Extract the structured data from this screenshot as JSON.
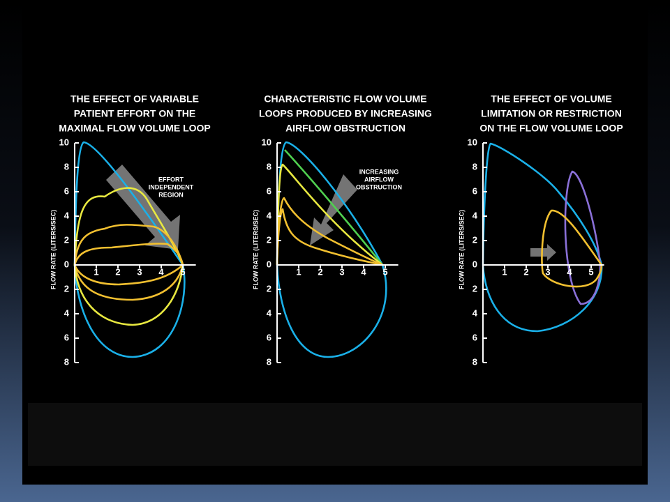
{
  "panels": [
    {
      "title": [
        "THE EFFECT OF VARIABLE",
        "PATIENT EFFORT ON THE",
        "MAXIMAL FLOW VOLUME LOOP"
      ],
      "y_label": "FLOW RATE (LITERS/SEC)",
      "y_ticks_upper": [
        10,
        8,
        6,
        4,
        2,
        0
      ],
      "y_ticks_lower": [
        2,
        4,
        6,
        8
      ],
      "x_ticks": [
        1,
        2,
        3,
        4,
        5
      ],
      "annotation": [
        "EFFORT",
        "INDEPENDENT",
        "REGION"
      ]
    },
    {
      "title": [
        "CHARACTERISTIC FLOW VOLUME",
        "LOOPS PRODUCED BY INCREASING",
        "AIRFLOW OBSTRUCTION"
      ],
      "y_label": "FLOW RATE (LITERS/SEC)",
      "y_ticks_upper": [
        10,
        8,
        6,
        4,
        2,
        0
      ],
      "y_ticks_lower": [
        2,
        4,
        6,
        8
      ],
      "x_ticks": [
        1,
        2,
        3,
        4,
        5
      ],
      "annotation": [
        "INCREASING",
        "AIRFLOW",
        "OBSTRUCTION"
      ]
    },
    {
      "title": [
        "THE EFFECT OF VOLUME",
        "LIMITATION OR RESTRICTION",
        "ON THE FLOW VOLUME LOOP"
      ],
      "y_label": "FLOW RATE (LITERS/SEC)",
      "y_ticks_upper": [
        10,
        8,
        6,
        4,
        2,
        0
      ],
      "y_ticks_lower": [
        2,
        4,
        6,
        8
      ],
      "x_ticks": [
        1,
        2,
        3,
        4,
        5
      ]
    }
  ]
}
